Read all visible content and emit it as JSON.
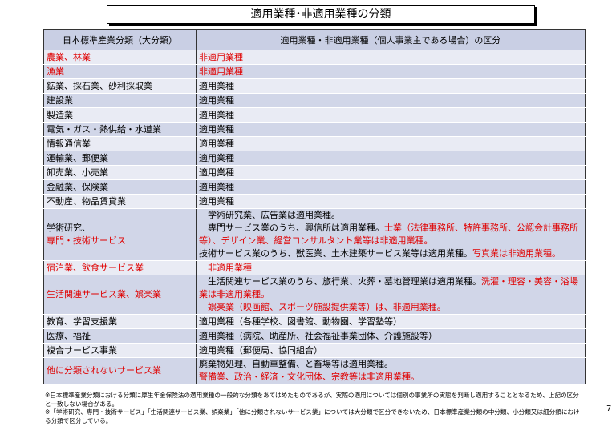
{
  "title": "適用業種･非適用業種の分類",
  "header": {
    "col1": "日本標準産業分類（大分類）",
    "col2": "適用業種・非適用業種（個人事業主である場合）の区分"
  },
  "colors": {
    "red": "#e00000",
    "header_bg": "#c9cfe4",
    "row_light": "#e9ebf4",
    "row_dark": "#d1d6e8"
  },
  "rows": [
    {
      "category": [
        {
          "t": "農業、林業",
          "red": true
        }
      ],
      "status": [
        {
          "t": "非適用業種",
          "red": true
        }
      ]
    },
    {
      "category": [
        {
          "t": "漁業",
          "red": true
        }
      ],
      "status": [
        {
          "t": "非適用業種",
          "red": true
        }
      ]
    },
    {
      "category": [
        {
          "t": "鉱業、採石業、砂利採取業"
        }
      ],
      "status": [
        {
          "t": "適用業種"
        }
      ]
    },
    {
      "category": [
        {
          "t": "建設業"
        }
      ],
      "status": [
        {
          "t": "適用業種"
        }
      ]
    },
    {
      "category": [
        {
          "t": "製造業"
        }
      ],
      "status": [
        {
          "t": "適用業種"
        }
      ]
    },
    {
      "category": [
        {
          "t": "電気・ガス・熱供給・水道業"
        }
      ],
      "status": [
        {
          "t": "適用業種"
        }
      ]
    },
    {
      "category": [
        {
          "t": "情報通信業"
        }
      ],
      "status": [
        {
          "t": "適用業種"
        }
      ]
    },
    {
      "category": [
        {
          "t": "運輸業、郵便業"
        }
      ],
      "status": [
        {
          "t": "適用業種"
        }
      ]
    },
    {
      "category": [
        {
          "t": "卸売業、小売業"
        }
      ],
      "status": [
        {
          "t": "適用業種"
        }
      ]
    },
    {
      "category": [
        {
          "t": "金融業、保険業"
        }
      ],
      "status": [
        {
          "t": "適用業種"
        }
      ]
    },
    {
      "category": [
        {
          "t": "不動産、物品賃貸業"
        }
      ],
      "status": [
        {
          "t": "適用業種"
        }
      ]
    },
    {
      "category": [
        {
          "t": "学術研究、"
        },
        {
          "br": true
        },
        {
          "t": "専門・技術サービス",
          "red": true
        }
      ],
      "status": [
        {
          "t": "　学術研究業、広告業は適用業種。"
        },
        {
          "br": true
        },
        {
          "t": "　専門サービス業のうち、興信所は適用業種。"
        },
        {
          "t": "士業（法律事務所、特許事務所、公認会計事務所等）、デザイン業、経営コンサルタント業等は非適用業種。",
          "red": true
        },
        {
          "br": true
        },
        {
          "t": "技術サービス業のうち、獣医業、土木建築サービス業等は適用業種。"
        },
        {
          "t": "写真業は非適用業種。",
          "red": true
        }
      ]
    },
    {
      "category": [
        {
          "t": "宿泊業、飲食サービス業",
          "red": true
        }
      ],
      "status": [
        {
          "t": "　非適用業種",
          "red": true
        }
      ]
    },
    {
      "category": [
        {
          "t": "生活関連サービス業、娯楽業",
          "red": true
        }
      ],
      "status": [
        {
          "t": "　生活関連サービス業のうち、旅行業、火葬・墓地管理業は適用業種。"
        },
        {
          "t": "洗濯・理容・美容・浴場業は非適用業種。",
          "red": true
        },
        {
          "br": true
        },
        {
          "t": "　娯楽業（映画館、スポーツ施設提供業等）は、非適用業種。",
          "red": true
        }
      ]
    },
    {
      "category": [
        {
          "t": "教育、学習支援業"
        }
      ],
      "status": [
        {
          "t": "適用業種（各種学校、図書館、動物園、学習塾等）"
        }
      ]
    },
    {
      "category": [
        {
          "t": "医療、福祉"
        }
      ],
      "status": [
        {
          "t": "適用業種（病院、助産所、社会福祉事業団体、介護施設等）"
        }
      ]
    },
    {
      "category": [
        {
          "t": "複合サービス事業"
        }
      ],
      "status": [
        {
          "t": "適用業種（郵便局、協同組合）"
        }
      ]
    },
    {
      "category": [
        {
          "t": "他に分類されないサービス業",
          "red": true
        }
      ],
      "status": [
        {
          "t": "廃棄物処理、自動車整備、と畜場等は適用業種。"
        },
        {
          "br": true
        },
        {
          "t": "警備業、政治・経済・文化団体、宗教等は非適用業種。",
          "red": true
        }
      ]
    }
  ],
  "notes": [
    "※日本標準産業分類における分類に厚生年金保険法の適用業種の一般的な分類をあてはめたものであるが、実際の適用については個別の事業所の実態を判断し適用することとなるため、上記の区分と一致しない場合がある。",
    "※「学術研究、専門・技術サービス」「生活関連サービス業、娯楽業」「他に分類されないサービス業」については大分類で区分できないため、日本標準産業分類の中分類、小分類又は細分類における分類で区分している。"
  ],
  "page_number": "7"
}
